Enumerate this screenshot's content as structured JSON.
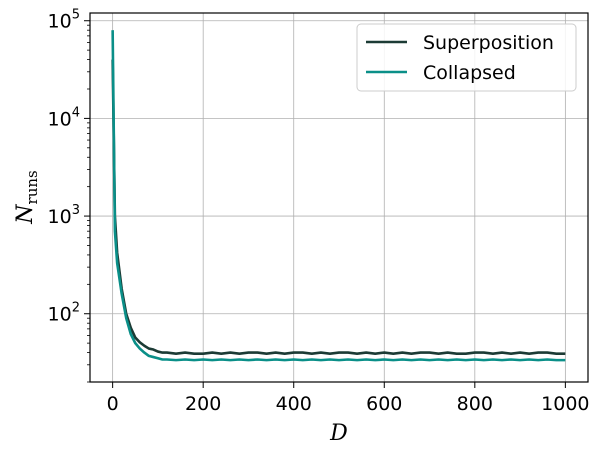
{
  "chart_data": {
    "type": "line",
    "title": "",
    "xlabel": "D",
    "ylabel": {
      "main": "N",
      "sub": "runs"
    },
    "xlim": [
      -50,
      1050
    ],
    "ylim": [
      20,
      120000
    ],
    "yscale": "log",
    "grid": true,
    "legend_position": "top-right",
    "x_ticks": [
      0,
      200,
      400,
      600,
      800,
      1000
    ],
    "x_tick_labels": [
      "0",
      "200",
      "400",
      "600",
      "800",
      "1000"
    ],
    "y_ticks": [
      100,
      1000,
      10000,
      100000
    ],
    "y_tick_labels": [
      {
        "base": "10",
        "exp": "2"
      },
      {
        "base": "10",
        "exp": "3"
      },
      {
        "base": "10",
        "exp": "4"
      },
      {
        "base": "10",
        "exp": "5"
      }
    ],
    "series": [
      {
        "name": "Superposition",
        "color": "#1c3b35",
        "x": [
          0,
          5,
          10,
          20,
          30,
          40,
          50,
          60,
          70,
          80,
          90,
          100,
          110,
          120,
          140,
          160,
          180,
          200,
          220,
          240,
          260,
          280,
          300,
          320,
          340,
          360,
          380,
          400,
          420,
          440,
          460,
          480,
          500,
          520,
          540,
          560,
          580,
          600,
          620,
          640,
          660,
          680,
          700,
          720,
          740,
          760,
          780,
          800,
          820,
          840,
          860,
          880,
          900,
          920,
          940,
          960,
          980,
          1000
        ],
        "values": [
          40000,
          1000,
          420,
          180,
          100,
          72,
          57,
          51,
          47,
          44,
          43,
          41,
          40,
          40,
          39,
          40,
          39,
          39,
          40,
          39,
          40,
          39,
          40,
          40,
          39,
          40,
          39,
          40,
          40,
          39,
          40,
          39,
          40,
          40,
          39,
          40,
          39,
          40,
          39,
          40,
          39,
          40,
          40,
          39,
          40,
          39,
          39,
          40,
          40,
          39,
          40,
          39,
          40,
          39,
          40,
          40,
          39,
          39
        ]
      },
      {
        "name": "Collapsed",
        "color": "#0a8f88",
        "x": [
          0,
          5,
          10,
          20,
          30,
          40,
          50,
          60,
          70,
          80,
          90,
          100,
          110,
          120,
          140,
          160,
          180,
          200,
          220,
          240,
          260,
          280,
          300,
          320,
          340,
          360,
          380,
          400,
          420,
          440,
          460,
          480,
          500,
          520,
          540,
          560,
          580,
          600,
          620,
          640,
          660,
          680,
          700,
          720,
          740,
          760,
          780,
          800,
          820,
          840,
          860,
          880,
          900,
          920,
          940,
          960,
          980,
          1000
        ],
        "values": [
          80000,
          700,
          330,
          160,
          90,
          62,
          50,
          44,
          40,
          37,
          36,
          35,
          34,
          34,
          33.5,
          34,
          33.5,
          34,
          33.5,
          34,
          33.5,
          34,
          33.5,
          34,
          33.5,
          34,
          33.5,
          34,
          33.5,
          34,
          33.5,
          34,
          33.5,
          34,
          33.5,
          34,
          33.5,
          34,
          33.5,
          34,
          33.5,
          34,
          33.5,
          34,
          33.5,
          34,
          33.5,
          34,
          33.5,
          34,
          33.5,
          34,
          33.5,
          34,
          33.5,
          34,
          33.5,
          33.5
        ]
      }
    ]
  }
}
